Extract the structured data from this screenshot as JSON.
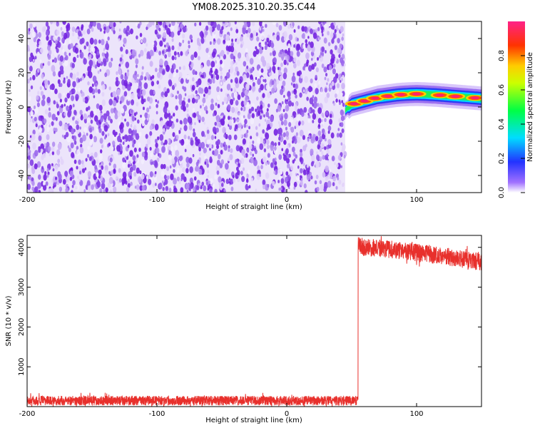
{
  "title": "YM08.2025.310.20.35.C44",
  "chart_data": [
    {
      "type": "heatmap",
      "panel": "spectrogram",
      "xlabel": "Height of straight line (km)",
      "ylabel": "Frequency (Hz)",
      "xlim": [
        -200,
        150
      ],
      "ylim": [
        -50,
        50
      ],
      "xticks": [
        -200,
        -100,
        0,
        100
      ],
      "yticks": [
        -40,
        -20,
        0,
        20,
        40
      ],
      "noise_region": {
        "x": [
          -200,
          45
        ],
        "y": [
          -50,
          50
        ],
        "color": "#7a1fe0"
      },
      "signal_track": {
        "x": [
          45,
          50,
          55,
          60,
          65,
          70,
          75,
          80,
          85,
          90,
          95,
          100,
          105,
          110,
          115,
          120,
          125,
          130,
          135,
          140,
          145,
          150
        ],
        "freq": [
          -2,
          1.5,
          2.5,
          3.5,
          4.5,
          5.5,
          6,
          6.5,
          7,
          7.3,
          7.5,
          7.6,
          7.5,
          7.3,
          7.1,
          6.8,
          6.5,
          6.2,
          5.9,
          5.6,
          5.3,
          5
        ],
        "peaks_x": [
          52,
          60,
          68,
          78,
          88,
          100,
          118,
          130,
          145
        ],
        "peaks_amp": [
          0.85,
          0.8,
          0.85,
          0.9,
          0.85,
          0.95,
          0.9,
          0.95,
          0.85
        ]
      },
      "colorbar": {
        "label": "Normalized spectral amplitude",
        "range": [
          0,
          1
        ],
        "ticks": [
          "0.0",
          "0.2",
          "0.4",
          "0.6",
          "0.8"
        ]
      }
    },
    {
      "type": "line",
      "panel": "snr",
      "xlabel": "Height of straight line (km)",
      "ylabel": "SNR (10 * v/v)",
      "xlim": [
        -200,
        150
      ],
      "ylim": [
        0,
        4300
      ],
      "xticks": [
        -200,
        -100,
        0,
        100
      ],
      "yticks": [
        1000,
        2000,
        3000,
        4000
      ],
      "color": "#e8302c",
      "series": [
        {
          "name": "noise floor",
          "x": [
            -200,
            55
          ],
          "y": [
            150,
            150
          ],
          "jitter": 120
        },
        {
          "name": "signal",
          "x": [
            55,
            57,
            60,
            80,
            100,
            120,
            140,
            150
          ],
          "y": [
            4100,
            4050,
            4000,
            3950,
            3870,
            3780,
            3680,
            3630
          ],
          "jitter": 220
        }
      ]
    }
  ]
}
